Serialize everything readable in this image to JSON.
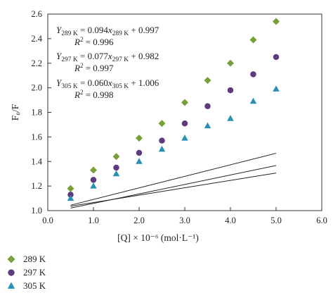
{
  "chart_data": {
    "type": "scatter",
    "xlabel": "[Q] × 10⁻⁶ (mol·L⁻¹)",
    "ylabel": "F₀/F",
    "xlim": [
      0.0,
      6.0
    ],
    "ylim": [
      1.0,
      2.6
    ],
    "xticks": [
      "0.0",
      "1.0",
      "2.0",
      "3.0",
      "4.0",
      "5.0",
      "6.0"
    ],
    "yticks": [
      "1.0",
      "1.2",
      "1.4",
      "1.6",
      "1.8",
      "2.0",
      "2.2",
      "2.4",
      "2.6"
    ],
    "grid": false,
    "legend_placement": "bottom-left",
    "series": [
      {
        "name": "289 K",
        "marker": "diamond",
        "color": "#77a03a",
        "x": [
          0.5,
          1.0,
          1.5,
          2.0,
          2.5,
          3.0,
          3.5,
          4.0,
          4.5,
          5.0
        ],
        "y": [
          1.18,
          1.33,
          1.44,
          1.59,
          1.71,
          1.88,
          2.06,
          2.2,
          2.39,
          2.54
        ],
        "fit": {
          "slope": 0.094,
          "intercept": 0.997
        }
      },
      {
        "name": "297 K",
        "marker": "circle",
        "color": "#5e3a7e",
        "x": [
          0.5,
          1.0,
          1.5,
          2.0,
          2.5,
          3.0,
          3.5,
          4.0,
          4.5,
          5.0
        ],
        "y": [
          1.13,
          1.25,
          1.35,
          1.47,
          1.57,
          1.71,
          1.85,
          1.98,
          2.11,
          2.25
        ],
        "fit": {
          "slope": 0.077,
          "intercept": 0.982
        }
      },
      {
        "name": "305 K",
        "marker": "triangle",
        "color": "#2a8fb0",
        "x": [
          0.5,
          1.0,
          1.5,
          2.0,
          2.5,
          3.0,
          3.5,
          4.0,
          4.5,
          5.0
        ],
        "y": [
          1.1,
          1.2,
          1.3,
          1.4,
          1.5,
          1.59,
          1.69,
          1.75,
          1.89,
          1.99
        ],
        "fit": {
          "slope": 0.06,
          "intercept": 1.006
        }
      }
    ],
    "annotations": [
      {
        "eq_y": "Y",
        "eq_sub": "289 K",
        "eq_mid": " = 0.094",
        "eq_x": "x",
        "eq_end": " + 0.997",
        "r2_label": "R",
        "r2_value": " = 0.996"
      },
      {
        "eq_y": "Y",
        "eq_sub": "297 K",
        "eq_mid": " = 0.077",
        "eq_x": "x",
        "eq_end": " + 0.982",
        "r2_label": "R",
        "r2_value": " = 0.997"
      },
      {
        "eq_y": "Y",
        "eq_sub": "305 K",
        "eq_mid": " = 0.060",
        "eq_x": "x",
        "eq_end": " + 1.006",
        "r2_label": "R",
        "r2_value": " = 0.998"
      }
    ]
  }
}
